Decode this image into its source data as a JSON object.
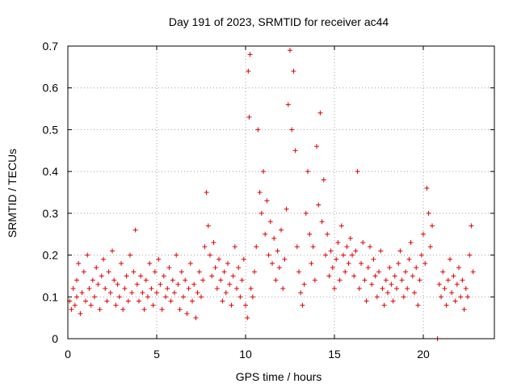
{
  "chart_data": {
    "type": "scatter",
    "title": "Day 191 of 2023, SRMTID for receiver ac44",
    "xlabel": "GPS time / hours",
    "ylabel": "SRMTID / TECUs",
    "xlim": [
      0,
      24
    ],
    "ylim": [
      0,
      0.7
    ],
    "xticks": [
      0,
      5,
      10,
      15,
      20
    ],
    "yticks": [
      0,
      0.1,
      0.2,
      0.3,
      0.4,
      0.5,
      0.6,
      0.7
    ],
    "xtick_labels": [
      "0",
      "5",
      "10",
      "15",
      "20"
    ],
    "ytick_labels": [
      "0",
      "0.1",
      "0.2",
      "0.3",
      "0.4",
      "0.5",
      "0.6",
      "0.7"
    ],
    "grid": true,
    "marker": "+",
    "color": "#e00000",
    "series": [
      {
        "name": "SRMTID",
        "points": [
          [
            0.1,
            0.09
          ],
          [
            0.2,
            0.07
          ],
          [
            0.3,
            0.12
          ],
          [
            0.4,
            0.08
          ],
          [
            0.5,
            0.14
          ],
          [
            0.5,
            0.1
          ],
          [
            0.6,
            0.18
          ],
          [
            0.7,
            0.06
          ],
          [
            0.8,
            0.11
          ],
          [
            0.9,
            0.16
          ],
          [
            1.0,
            0.09
          ],
          [
            1.1,
            0.2
          ],
          [
            1.2,
            0.12
          ],
          [
            1.3,
            0.08
          ],
          [
            1.4,
            0.14
          ],
          [
            1.5,
            0.1
          ],
          [
            1.6,
            0.17
          ],
          [
            1.7,
            0.13
          ],
          [
            1.8,
            0.07
          ],
          [
            1.9,
            0.15
          ],
          [
            2.0,
            0.19
          ],
          [
            2.1,
            0.12
          ],
          [
            2.2,
            0.09
          ],
          [
            2.3,
            0.16
          ],
          [
            2.4,
            0.11
          ],
          [
            2.5,
            0.21
          ],
          [
            2.6,
            0.14
          ],
          [
            2.7,
            0.08
          ],
          [
            2.8,
            0.13
          ],
          [
            2.9,
            0.1
          ],
          [
            3.0,
            0.18
          ],
          [
            3.1,
            0.07
          ],
          [
            3.2,
            0.12
          ],
          [
            3.3,
            0.15
          ],
          [
            3.4,
            0.09
          ],
          [
            3.5,
            0.2
          ],
          [
            3.6,
            0.11
          ],
          [
            3.7,
            0.16
          ],
          [
            3.8,
            0.26
          ],
          [
            3.9,
            0.13
          ],
          [
            4.0,
            0.09
          ],
          [
            4.1,
            0.15
          ],
          [
            4.2,
            0.11
          ],
          [
            4.3,
            0.07
          ],
          [
            4.4,
            0.14
          ],
          [
            4.5,
            0.1
          ],
          [
            4.6,
            0.18
          ],
          [
            4.7,
            0.12
          ],
          [
            4.8,
            0.08
          ],
          [
            4.9,
            0.16
          ],
          [
            5.0,
            0.11
          ],
          [
            5.1,
            0.19
          ],
          [
            5.2,
            0.13
          ],
          [
            5.3,
            0.07
          ],
          [
            5.4,
            0.15
          ],
          [
            5.5,
            0.1
          ],
          [
            5.6,
            0.12
          ],
          [
            5.7,
            0.17
          ],
          [
            5.8,
            0.09
          ],
          [
            5.9,
            0.14
          ],
          [
            6.0,
            0.11
          ],
          [
            6.1,
            0.2
          ],
          [
            6.2,
            0.13
          ],
          [
            6.3,
            0.07
          ],
          [
            6.4,
            0.16
          ],
          [
            6.5,
            0.1
          ],
          [
            6.6,
            0.14
          ],
          [
            6.7,
            0.06
          ],
          [
            6.8,
            0.12
          ],
          [
            6.9,
            0.18
          ],
          [
            7.0,
            0.09
          ],
          [
            7.1,
            0.13
          ],
          [
            7.2,
            0.05
          ],
          [
            7.3,
            0.11
          ],
          [
            7.4,
            0.16
          ],
          [
            7.5,
            0.1
          ],
          [
            7.6,
            0.14
          ],
          [
            7.7,
            0.22
          ],
          [
            7.8,
            0.35
          ],
          [
            7.9,
            0.27
          ],
          [
            8.0,
            0.2
          ],
          [
            8.1,
            0.15
          ],
          [
            8.2,
            0.23
          ],
          [
            8.3,
            0.17
          ],
          [
            8.4,
            0.12
          ],
          [
            8.5,
            0.19
          ],
          [
            8.6,
            0.14
          ],
          [
            8.7,
            0.09
          ],
          [
            8.8,
            0.16
          ],
          [
            8.9,
            0.11
          ],
          [
            9.0,
            0.18
          ],
          [
            9.1,
            0.13
          ],
          [
            9.2,
            0.08
          ],
          [
            9.3,
            0.15
          ],
          [
            9.4,
            0.22
          ],
          [
            9.5,
            0.12
          ],
          [
            9.6,
            0.17
          ],
          [
            9.7,
            0.1
          ],
          [
            9.8,
            0.14
          ],
          [
            9.9,
            0.19
          ],
          [
            10.0,
            0.08
          ],
          [
            10.1,
            0.05
          ],
          [
            10.15,
            0.64
          ],
          [
            10.2,
            0.53
          ],
          [
            10.25,
            0.68
          ],
          [
            10.3,
            0.12
          ],
          [
            10.4,
            0.1
          ],
          [
            10.5,
            0.16
          ],
          [
            10.6,
            0.22
          ],
          [
            10.7,
            0.5
          ],
          [
            10.8,
            0.35
          ],
          [
            10.9,
            0.3
          ],
          [
            11.0,
            0.4
          ],
          [
            11.1,
            0.25
          ],
          [
            11.2,
            0.33
          ],
          [
            11.3,
            0.2
          ],
          [
            11.4,
            0.28
          ],
          [
            11.5,
            0.18
          ],
          [
            11.6,
            0.24
          ],
          [
            11.7,
            0.14
          ],
          [
            11.8,
            0.21
          ],
          [
            11.9,
            0.17
          ],
          [
            12.0,
            0.26
          ],
          [
            12.1,
            0.12
          ],
          [
            12.2,
            0.19
          ],
          [
            12.3,
            0.31
          ],
          [
            12.4,
            0.56
          ],
          [
            12.5,
            0.69
          ],
          [
            12.6,
            0.5
          ],
          [
            12.7,
            0.64
          ],
          [
            12.8,
            0.45
          ],
          [
            12.9,
            0.22
          ],
          [
            13.0,
            0.16
          ],
          [
            13.1,
            0.11
          ],
          [
            13.2,
            0.08
          ],
          [
            13.3,
            0.13
          ],
          [
            13.4,
            0.3
          ],
          [
            13.5,
            0.4
          ],
          [
            13.6,
            0.25
          ],
          [
            13.7,
            0.18
          ],
          [
            13.8,
            0.22
          ],
          [
            13.9,
            0.14
          ],
          [
            14.0,
            0.46
          ],
          [
            14.1,
            0.32
          ],
          [
            14.2,
            0.54
          ],
          [
            14.3,
            0.28
          ],
          [
            14.4,
            0.38
          ],
          [
            14.5,
            0.2
          ],
          [
            14.6,
            0.25
          ],
          [
            14.7,
            0.15
          ],
          [
            14.8,
            0.21
          ],
          [
            14.9,
            0.17
          ],
          [
            15.0,
            0.12
          ],
          [
            15.1,
            0.19
          ],
          [
            15.2,
            0.23
          ],
          [
            15.3,
            0.14
          ],
          [
            15.4,
            0.27
          ],
          [
            15.5,
            0.2
          ],
          [
            15.6,
            0.16
          ],
          [
            15.7,
            0.22
          ],
          [
            15.8,
            0.18
          ],
          [
            15.9,
            0.24
          ],
          [
            16.0,
            0.2
          ],
          [
            16.1,
            0.15
          ],
          [
            16.2,
            0.21
          ],
          [
            16.3,
            0.4
          ],
          [
            16.4,
            0.12
          ],
          [
            16.5,
            0.18
          ],
          [
            16.6,
            0.23
          ],
          [
            16.7,
            0.14
          ],
          [
            16.8,
            0.09
          ],
          [
            16.9,
            0.17
          ],
          [
            17.0,
            0.22
          ],
          [
            17.1,
            0.13
          ],
          [
            17.2,
            0.19
          ],
          [
            17.3,
            0.15
          ],
          [
            17.4,
            0.1
          ],
          [
            17.5,
            0.16
          ],
          [
            17.6,
            0.21
          ],
          [
            17.7,
            0.12
          ],
          [
            17.8,
            0.08
          ],
          [
            17.9,
            0.14
          ],
          [
            18.0,
            0.11
          ],
          [
            18.1,
            0.17
          ],
          [
            18.2,
            0.13
          ],
          [
            18.3,
            0.09
          ],
          [
            18.4,
            0.15
          ],
          [
            18.5,
            0.12
          ],
          [
            18.6,
            0.18
          ],
          [
            18.7,
            0.21
          ],
          [
            18.8,
            0.14
          ],
          [
            18.9,
            0.1
          ],
          [
            19.0,
            0.16
          ],
          [
            19.1,
            0.12
          ],
          [
            19.2,
            0.19
          ],
          [
            19.3,
            0.23
          ],
          [
            19.4,
            0.15
          ],
          [
            19.5,
            0.11
          ],
          [
            19.6,
            0.17
          ],
          [
            19.7,
            0.08
          ],
          [
            19.8,
            0.14
          ],
          [
            19.9,
            0.2
          ],
          [
            20.0,
            0.25
          ],
          [
            20.1,
            0.18
          ],
          [
            20.2,
            0.36
          ],
          [
            20.3,
            0.3
          ],
          [
            20.4,
            0.22
          ],
          [
            20.5,
            0.27
          ],
          [
            20.8,
            0.0
          ],
          [
            20.9,
            0.13
          ],
          [
            21.0,
            0.1
          ],
          [
            21.1,
            0.16
          ],
          [
            21.2,
            0.12
          ],
          [
            21.3,
            0.08
          ],
          [
            21.4,
            0.14
          ],
          [
            21.5,
            0.19
          ],
          [
            21.6,
            0.11
          ],
          [
            21.7,
            0.15
          ],
          [
            21.8,
            0.09
          ],
          [
            21.9,
            0.13
          ],
          [
            22.0,
            0.17
          ],
          [
            22.1,
            0.1
          ],
          [
            22.2,
            0.14
          ],
          [
            22.3,
            0.07
          ],
          [
            22.4,
            0.12
          ],
          [
            22.5,
            0.1
          ],
          [
            22.6,
            0.2
          ],
          [
            22.7,
            0.27
          ],
          [
            22.8,
            0.16
          ]
        ]
      }
    ]
  }
}
